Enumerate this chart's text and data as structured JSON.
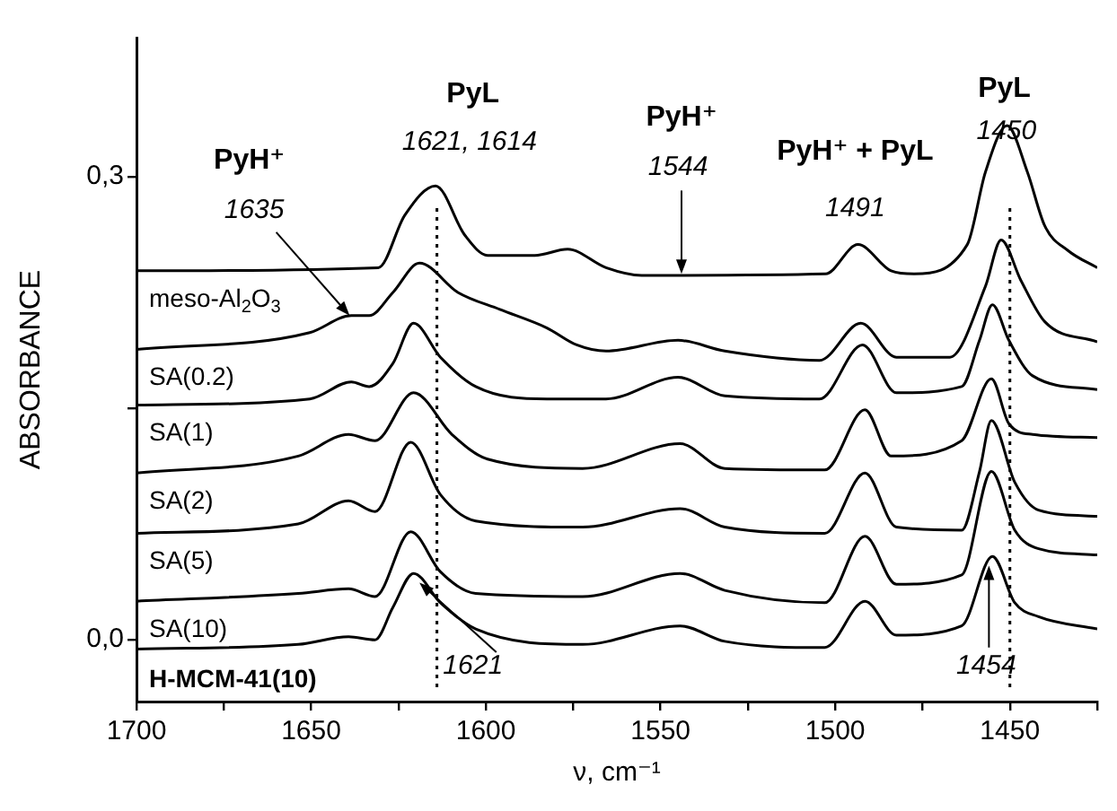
{
  "chart_data": {
    "type": "line",
    "xlabel": "ν, cm⁻¹",
    "ylabel": "ABSORBANCE",
    "xlim": [
      1700,
      1425
    ],
    "ylim": [
      -0.04,
      0.39
    ],
    "xticks": [
      1700,
      {
        "value": 1675,
        "label": null
      },
      1650,
      {
        "value": 1625,
        "label": null
      },
      1600,
      {
        "value": 1575,
        "label": null
      },
      1550,
      {
        "value": 1525,
        "label": null
      },
      1500,
      {
        "value": 1475,
        "label": null
      },
      1450,
      {
        "value": 1425,
        "label": null
      }
    ],
    "yticks": [
      {
        "value": 0,
        "label": "0,0"
      },
      {
        "value": 0.15,
        "label": null
      },
      {
        "value": 0.3,
        "label": "0,3"
      }
    ],
    "grid": false,
    "marker": "none",
    "series": [
      {
        "name": "meso-Al$_{2}$O$_{3}$",
        "color": "#000000",
        "x": [
          1700,
          1630.8,
          1623.2,
          1614.4,
          1606,
          1599.5,
          1586,
          1576.6,
          1565.6,
          1555.4,
          1502.8,
          1493.5,
          1484,
          1477.4,
          1462.2,
          1457,
          1450.8,
          1445,
          1440,
          1433.3,
          1425
        ],
        "values": [
          0.239,
          0.241,
          0.275,
          0.294,
          0.262,
          0.249,
          0.249,
          0.253,
          0.241,
          0.236,
          0.237,
          0.256,
          0.239,
          0.237,
          0.256,
          0.303,
          0.333,
          0.303,
          0.268,
          0.252,
          0.241
        ]
      },
      {
        "name": "SA(0.2)",
        "color": "#000000",
        "x": [
          1700,
          1650.4,
          1638.5,
          1633.4,
          1626.6,
          1619,
          1608,
          1596,
          1582.5,
          1574,
          1565.6,
          1545,
          1531.6,
          1504.5,
          1492.7,
          1482.5,
          1467.2,
          1457,
          1452.5,
          1446.9,
          1440,
          1425
        ],
        "values": [
          0.188,
          0.199,
          0.21,
          0.21,
          0.225,
          0.244,
          0.225,
          0.214,
          0.202,
          0.191,
          0.187,
          0.194,
          0.187,
          0.181,
          0.205,
          0.183,
          0.183,
          0.229,
          0.259,
          0.233,
          0.206,
          0.193
        ]
      },
      {
        "name": "SA(1)",
        "color": "#000000",
        "x": [
          1700,
          1650.4,
          1638.5,
          1633.4,
          1626.6,
          1620.7,
          1613,
          1602.9,
          1582.5,
          1565.6,
          1545,
          1531.6,
          1504.5,
          1492.2,
          1482.5,
          1463.8,
          1458.7,
          1455,
          1450.3,
          1443.5,
          1425
        ],
        "values": [
          0.152,
          0.156,
          0.167,
          0.164,
          0.179,
          0.205,
          0.183,
          0.164,
          0.156,
          0.156,
          0.17,
          0.158,
          0.156,
          0.191,
          0.16,
          0.164,
          0.194,
          0.217,
          0.194,
          0.171,
          0.162
        ]
      },
      {
        "name": "SA(2)",
        "color": "#000000",
        "x": [
          1700,
          1653.7,
          1639.3,
          1631.7,
          1620.7,
          1609.7,
          1599.5,
          1572.3,
          1544.4,
          1531.6,
          1503,
          1491.5,
          1484,
          1463.8,
          1455.3,
          1450.3,
          1443.5,
          1425
        ],
        "values": [
          0.108,
          0.119,
          0.133,
          0.129,
          0.16,
          0.133,
          0.117,
          0.111,
          0.127,
          0.111,
          0.11,
          0.149,
          0.119,
          0.129,
          0.169,
          0.14,
          0.133,
          0.131
        ]
      },
      {
        "name": "SA(5)",
        "color": "#000000",
        "x": [
          1700,
          1653.7,
          1639.3,
          1631.7,
          1621.5,
          1613,
          1602.9,
          1572.3,
          1544.4,
          1531.6,
          1503,
          1491.5,
          1482.5,
          1463.8,
          1458.7,
          1455.3,
          1448.6,
          1441.8,
          1425
        ],
        "values": [
          0.069,
          0.075,
          0.09,
          0.083,
          0.128,
          0.094,
          0.077,
          0.073,
          0.085,
          0.073,
          0.069,
          0.108,
          0.073,
          0.071,
          0.109,
          0.142,
          0.102,
          0.084,
          0.08
        ]
      },
      {
        "name": "SA(10)",
        "color": "#000000",
        "x": [
          1700,
          1653.7,
          1639.3,
          1631.7,
          1621.5,
          1613,
          1602.9,
          1572.3,
          1544.4,
          1531.6,
          1503,
          1491.5,
          1482.5,
          1463.8,
          1455.3,
          1448.6,
          1441.8,
          1425
        ],
        "values": [
          0.025,
          0.03,
          0.033,
          0.028,
          0.07,
          0.044,
          0.03,
          0.028,
          0.043,
          0.032,
          0.024,
          0.067,
          0.036,
          0.042,
          0.109,
          0.071,
          0.059,
          0.055
        ]
      },
      {
        "name": "H-MCM-41(10)",
        "color": "#000000",
        "x": [
          1700,
          1653.7,
          1639.3,
          1631.7,
          1626.6,
          1620.7,
          1613,
          1602.9,
          1572.3,
          1544.4,
          1531.6,
          1503,
          1491.5,
          1482.5,
          1463.8,
          1455,
          1448.6,
          1441.8,
          1425
        ],
        "values": [
          -0.006,
          -0.003,
          0.002,
          0.0,
          0.021,
          0.043,
          0.024,
          0.007,
          -0.003,
          0.009,
          -0.001,
          -0.005,
          0.025,
          0.003,
          0.009,
          0.054,
          0.024,
          0.015,
          0.007
        ]
      }
    ],
    "ref_lines": [
      {
        "axis": "x",
        "value": 1614,
        "line_style": "dotted",
        "color": "#000000"
      },
      {
        "axis": "x",
        "value": 1450,
        "line_style": "dotted",
        "color": "#000000"
      }
    ],
    "annotations": [
      "PyH⁺",
      {
        "text": "1635",
        "x": 1639,
        "y": 0.21
      },
      "PyL",
      "1621, 1614",
      "PyH⁺",
      {
        "text": "1544",
        "x": 1544,
        "y": 0.237
      },
      "PyH⁺ + PyL",
      "1491",
      "PyL",
      "1450",
      {
        "text": "1621",
        "x": 1619,
        "y": 0.037
      },
      {
        "text": "1454",
        "x": 1456,
        "y": 0.048
      }
    ]
  }
}
